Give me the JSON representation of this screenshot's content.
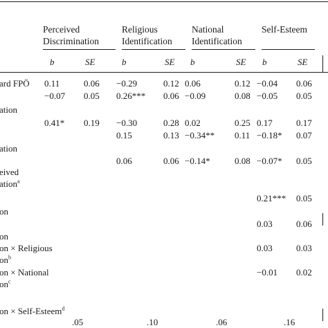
{
  "groups": [
    {
      "line1": "Perceived",
      "line2": "Discrimination"
    },
    {
      "line1": "Religious",
      "line2": "Identification"
    },
    {
      "line1": "National",
      "line2": "Identification"
    },
    {
      "line1": "Self-Esteem",
      "line2": ""
    }
  ],
  "subheads": [
    "b",
    "SE",
    "b",
    "SE",
    "b",
    "SE",
    "b",
    "SE"
  ],
  "rows": [
    {
      "label": "ard FPÖ",
      "sup": "",
      "cells": [
        "0.11",
        "0.06",
        "−0.29",
        "0.12",
        "0.06",
        "0.12",
        "−0.04",
        "0.06"
      ]
    },
    {
      "label": "",
      "sup": "",
      "cells": [
        "−0.07",
        "0.05",
        "0.26***",
        "0.06",
        "−0.09",
        "0.08",
        "−0.05",
        "0.05"
      ]
    },
    {
      "label": "ation",
      "sup": "",
      "cells": [
        "",
        "",
        "",
        "",
        "",
        "",
        "",
        ""
      ]
    },
    {
      "label": "",
      "sup": "",
      "cells": [
        "0.41*",
        "0.19",
        "−0.30",
        "0.28",
        "0.02",
        "0.25",
        "0.17",
        "0.17"
      ]
    },
    {
      "label": "",
      "sup": "",
      "cells": [
        "",
        "",
        "0.15",
        "0.13",
        "−0.34**",
        "0.11",
        "−0.18*",
        "0.07"
      ]
    },
    {
      "label": "ation",
      "sup": "",
      "cells": [
        "",
        "",
        "",
        "",
        "",
        "",
        "",
        ""
      ]
    },
    {
      "label": "",
      "sup": "",
      "cells": [
        "",
        "",
        "0.06",
        "0.06",
        "−0.14*",
        "0.08",
        "−0.07*",
        "0.05"
      ]
    },
    {
      "label": "eived",
      "sup": "",
      "cells": [
        "",
        "",
        "",
        "",
        "",
        "",
        "",
        ""
      ]
    },
    {
      "label": "ation",
      "sup": "a",
      "cells": [
        "",
        "",
        "",
        "",
        "",
        "",
        "",
        ""
      ]
    },
    {
      "label": "",
      "sup": "",
      "cells": [
        "",
        "",
        "",
        "",
        "",
        "",
        "0.21***",
        "0.05"
      ]
    },
    {
      "label": "on",
      "sup": "",
      "cells": [
        "",
        "",
        "",
        "",
        "",
        "",
        "",
        ""
      ]
    },
    {
      "label": "",
      "sup": "",
      "cells": [
        "",
        "",
        "",
        "",
        "",
        "",
        "0.03",
        "0.06"
      ]
    },
    {
      "label": "on",
      "sup": "",
      "cells": [
        "",
        "",
        "",
        "",
        "",
        "",
        "",
        ""
      ]
    },
    {
      "label": "on × Religious",
      "sup": "",
      "cells": [
        "",
        "",
        "",
        "",
        "",
        "",
        "0.03",
        "0.03"
      ]
    },
    {
      "label": "on",
      "sup": "b",
      "cells": [
        "",
        "",
        "",
        "",
        "",
        "",
        "",
        ""
      ]
    },
    {
      "label": "on × National",
      "sup": "",
      "cells": [
        "",
        "",
        "",
        "",
        "",
        "",
        "−0.01",
        "0.02"
      ]
    },
    {
      "label": "on",
      "sup": "c",
      "cells": [
        "",
        "",
        "",
        "",
        "",
        "",
        "",
        ""
      ]
    },
    {
      "label": "on × Self-Esteem",
      "sup": "d",
      "cells": [
        "",
        "",
        "",
        "",
        "",
        "",
        "",
        ""
      ]
    }
  ],
  "footer": [
    ".05",
    ".10",
    ".06",
    ".16"
  ]
}
